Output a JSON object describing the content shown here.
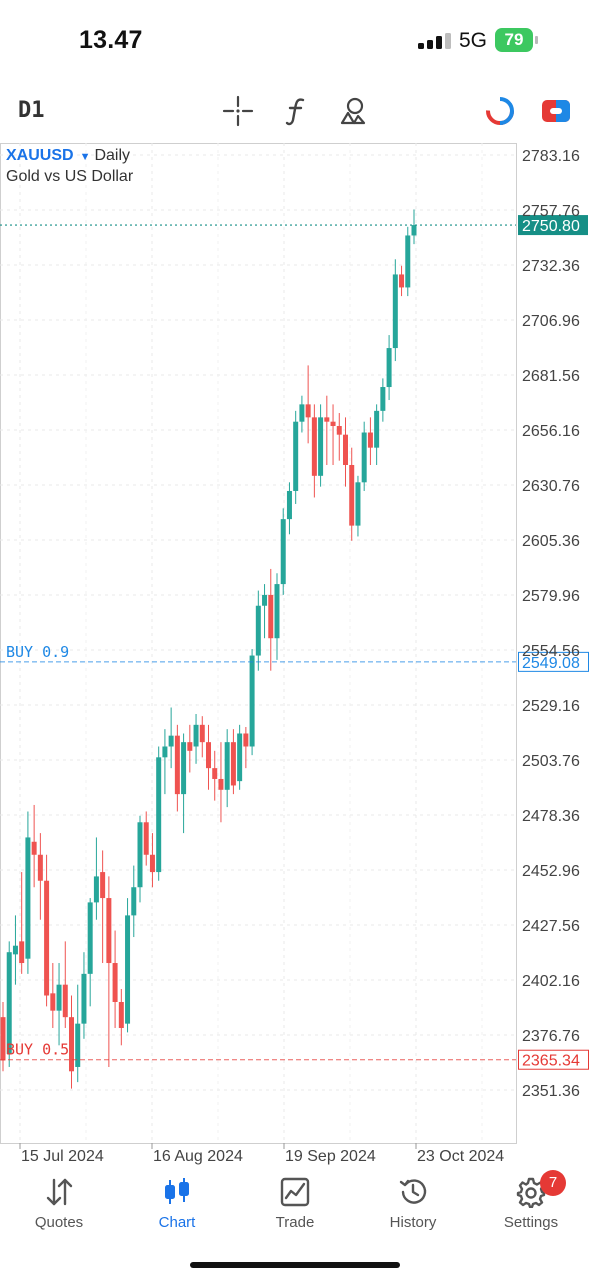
{
  "status_bar": {
    "time": "13.47",
    "network": "5G",
    "battery": "79"
  },
  "toolbar": {
    "timeframe": "D1",
    "icons": [
      "crosshair-icon",
      "indicators-f-icon",
      "objects-shapes-icon",
      "one-click-trading-icon",
      "trade-panel-icon"
    ]
  },
  "chart": {
    "symbol": "XAUUSD",
    "timeframe_name": "Daily",
    "description": "Gold vs US Dollar",
    "price_labels": [
      "2783.16",
      "2757.76",
      "2732.36",
      "2706.96",
      "2681.56",
      "2656.16",
      "2630.76",
      "2605.36",
      "2579.96",
      "2554.56",
      "2529.16",
      "2503.76",
      "2478.36",
      "2452.96",
      "2427.56",
      "2402.16",
      "2376.76",
      "2351.36"
    ],
    "date_labels": [
      "15 Jul 2024",
      "16 Aug 2024",
      "19 Sep 2024",
      "23 Oct 2024"
    ],
    "current_price": "2750.80",
    "order_lines": [
      {
        "label": "BUY 0.9",
        "price": "2549.08",
        "color": "#1e88e5"
      },
      {
        "label": "BUY 0.5",
        "price": "2365.34",
        "color": "#e53935"
      }
    ],
    "colors": {
      "bull": "#26a69a",
      "bear": "#ef5350",
      "grid": "#e8e8e8",
      "current": "#168f86"
    }
  },
  "chart_data": {
    "type": "candlestick",
    "symbol": "XAUUSD",
    "ylim": [
      2340,
      2790
    ],
    "candles": [
      {
        "o": 2385,
        "h": 2392,
        "l": 2360,
        "c": 2365
      },
      {
        "o": 2368,
        "h": 2420,
        "l": 2362,
        "c": 2415
      },
      {
        "o": 2414,
        "h": 2432,
        "l": 2400,
        "c": 2418
      },
      {
        "o": 2420,
        "h": 2452,
        "l": 2405,
        "c": 2410
      },
      {
        "o": 2412,
        "h": 2480,
        "l": 2405,
        "c": 2468
      },
      {
        "o": 2466,
        "h": 2483,
        "l": 2445,
        "c": 2460
      },
      {
        "o": 2460,
        "h": 2470,
        "l": 2430,
        "c": 2448
      },
      {
        "o": 2448,
        "h": 2460,
        "l": 2390,
        "c": 2395
      },
      {
        "o": 2396,
        "h": 2410,
        "l": 2380,
        "c": 2388
      },
      {
        "o": 2388,
        "h": 2410,
        "l": 2372,
        "c": 2400
      },
      {
        "o": 2400,
        "h": 2420,
        "l": 2380,
        "c": 2385
      },
      {
        "o": 2385,
        "h": 2395,
        "l": 2352,
        "c": 2360
      },
      {
        "o": 2362,
        "h": 2400,
        "l": 2355,
        "c": 2382
      },
      {
        "o": 2382,
        "h": 2415,
        "l": 2375,
        "c": 2405
      },
      {
        "o": 2405,
        "h": 2440,
        "l": 2390,
        "c": 2438
      },
      {
        "o": 2438,
        "h": 2468,
        "l": 2430,
        "c": 2450
      },
      {
        "o": 2452,
        "h": 2462,
        "l": 2410,
        "c": 2440
      },
      {
        "o": 2440,
        "h": 2450,
        "l": 2362,
        "c": 2410
      },
      {
        "o": 2410,
        "h": 2425,
        "l": 2380,
        "c": 2392
      },
      {
        "o": 2392,
        "h": 2398,
        "l": 2372,
        "c": 2380
      },
      {
        "o": 2382,
        "h": 2440,
        "l": 2378,
        "c": 2432
      },
      {
        "o": 2432,
        "h": 2455,
        "l": 2422,
        "c": 2445
      },
      {
        "o": 2445,
        "h": 2478,
        "l": 2438,
        "c": 2475
      },
      {
        "o": 2475,
        "h": 2480,
        "l": 2455,
        "c": 2460
      },
      {
        "o": 2460,
        "h": 2470,
        "l": 2445,
        "c": 2452
      },
      {
        "o": 2452,
        "h": 2510,
        "l": 2448,
        "c": 2505
      },
      {
        "o": 2505,
        "h": 2518,
        "l": 2488,
        "c": 2510
      },
      {
        "o": 2510,
        "h": 2528,
        "l": 2500,
        "c": 2515
      },
      {
        "o": 2515,
        "h": 2520,
        "l": 2480,
        "c": 2488
      },
      {
        "o": 2488,
        "h": 2516,
        "l": 2470,
        "c": 2512
      },
      {
        "o": 2512,
        "h": 2520,
        "l": 2498,
        "c": 2508
      },
      {
        "o": 2510,
        "h": 2525,
        "l": 2502,
        "c": 2520
      },
      {
        "o": 2520,
        "h": 2524,
        "l": 2505,
        "c": 2512
      },
      {
        "o": 2512,
        "h": 2520,
        "l": 2490,
        "c": 2500
      },
      {
        "o": 2500,
        "h": 2508,
        "l": 2485,
        "c": 2495
      },
      {
        "o": 2495,
        "h": 2512,
        "l": 2475,
        "c": 2490
      },
      {
        "o": 2490,
        "h": 2518,
        "l": 2482,
        "c": 2512
      },
      {
        "o": 2512,
        "h": 2518,
        "l": 2488,
        "c": 2492
      },
      {
        "o": 2494,
        "h": 2520,
        "l": 2490,
        "c": 2516
      },
      {
        "o": 2516,
        "h": 2519,
        "l": 2500,
        "c": 2510
      },
      {
        "o": 2510,
        "h": 2555,
        "l": 2506,
        "c": 2552
      },
      {
        "o": 2552,
        "h": 2582,
        "l": 2545,
        "c": 2575
      },
      {
        "o": 2575,
        "h": 2585,
        "l": 2560,
        "c": 2580
      },
      {
        "o": 2580,
        "h": 2592,
        "l": 2545,
        "c": 2560
      },
      {
        "o": 2560,
        "h": 2590,
        "l": 2550,
        "c": 2585
      },
      {
        "o": 2585,
        "h": 2620,
        "l": 2580,
        "c": 2615
      },
      {
        "o": 2615,
        "h": 2632,
        "l": 2608,
        "c": 2628
      },
      {
        "o": 2628,
        "h": 2665,
        "l": 2622,
        "c": 2660
      },
      {
        "o": 2660,
        "h": 2672,
        "l": 2655,
        "c": 2668
      },
      {
        "o": 2668,
        "h": 2686,
        "l": 2650,
        "c": 2662
      },
      {
        "o": 2662,
        "h": 2668,
        "l": 2625,
        "c": 2635
      },
      {
        "o": 2635,
        "h": 2668,
        "l": 2630,
        "c": 2662
      },
      {
        "o": 2662,
        "h": 2672,
        "l": 2640,
        "c": 2660
      },
      {
        "o": 2660,
        "h": 2668,
        "l": 2640,
        "c": 2658
      },
      {
        "o": 2658,
        "h": 2664,
        "l": 2642,
        "c": 2654
      },
      {
        "o": 2654,
        "h": 2662,
        "l": 2630,
        "c": 2640
      },
      {
        "o": 2640,
        "h": 2648,
        "l": 2605,
        "c": 2612
      },
      {
        "o": 2612,
        "h": 2635,
        "l": 2607,
        "c": 2632
      },
      {
        "o": 2632,
        "h": 2660,
        "l": 2628,
        "c": 2655
      },
      {
        "o": 2655,
        "h": 2662,
        "l": 2640,
        "c": 2648
      },
      {
        "o": 2648,
        "h": 2668,
        "l": 2640,
        "c": 2665
      },
      {
        "o": 2665,
        "h": 2680,
        "l": 2660,
        "c": 2676
      },
      {
        "o": 2676,
        "h": 2700,
        "l": 2670,
        "c": 2694
      },
      {
        "o": 2694,
        "h": 2735,
        "l": 2688,
        "c": 2728
      },
      {
        "o": 2728,
        "h": 2732,
        "l": 2718,
        "c": 2722
      },
      {
        "o": 2722,
        "h": 2750,
        "l": 2718,
        "c": 2746
      },
      {
        "o": 2746,
        "h": 2758,
        "l": 2742,
        "c": 2750.8
      }
    ]
  },
  "nav": {
    "items": [
      {
        "label": "Quotes",
        "icon": "quotes-arrows-icon",
        "active": false
      },
      {
        "label": "Chart",
        "icon": "candlestick-chart-icon",
        "active": true
      },
      {
        "label": "Trade",
        "icon": "trade-line-chart-icon",
        "active": false
      },
      {
        "label": "History",
        "icon": "history-clock-icon",
        "active": false
      },
      {
        "label": "Settings",
        "icon": "settings-gear-icon",
        "active": false
      }
    ],
    "settings_badge": "7"
  }
}
